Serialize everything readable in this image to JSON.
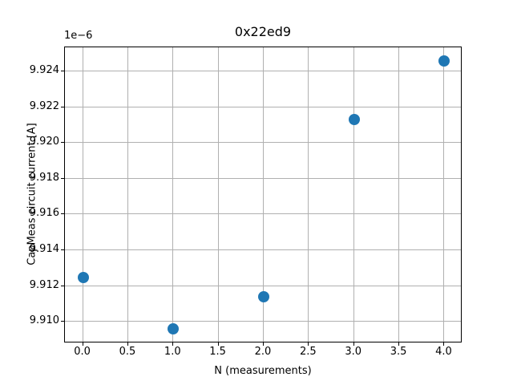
{
  "figure": {
    "background": "#ffffff",
    "text_color": "#000000",
    "spine_color": "#000000"
  },
  "chart_data": {
    "type": "scatter",
    "title": "0x22ed9",
    "xlabel": "N (measurements)",
    "ylabel": "CapMeas circuit current [A]",
    "offset_label": "1e−6",
    "y_unit_multiplier": "1e-6",
    "x": [
      0,
      1,
      2,
      3,
      4
    ],
    "y": [
      9.9125,
      9.9096,
      9.9114,
      9.9213,
      9.9246
    ],
    "xlim": [
      -0.2,
      4.2
    ],
    "ylim": [
      9.9088,
      9.92535
    ],
    "xticks": {
      "values": [
        0.0,
        0.5,
        1.0,
        1.5,
        2.0,
        2.5,
        3.0,
        3.5,
        4.0
      ],
      "labels": [
        "0.0",
        "0.5",
        "1.0",
        "1.5",
        "2.0",
        "2.5",
        "3.0",
        "3.5",
        "4.0"
      ]
    },
    "yticks": {
      "values": [
        9.91,
        9.912,
        9.914,
        9.916,
        9.918,
        9.92,
        9.922,
        9.924
      ],
      "labels": [
        "9.910",
        "9.912",
        "9.914",
        "9.916",
        "9.918",
        "9.920",
        "9.922",
        "9.924"
      ]
    },
    "grid": true,
    "legend": null,
    "marker_color": "#1f77b4",
    "marker_diameter_px": 14,
    "grid_color": "#b0b0b0"
  }
}
